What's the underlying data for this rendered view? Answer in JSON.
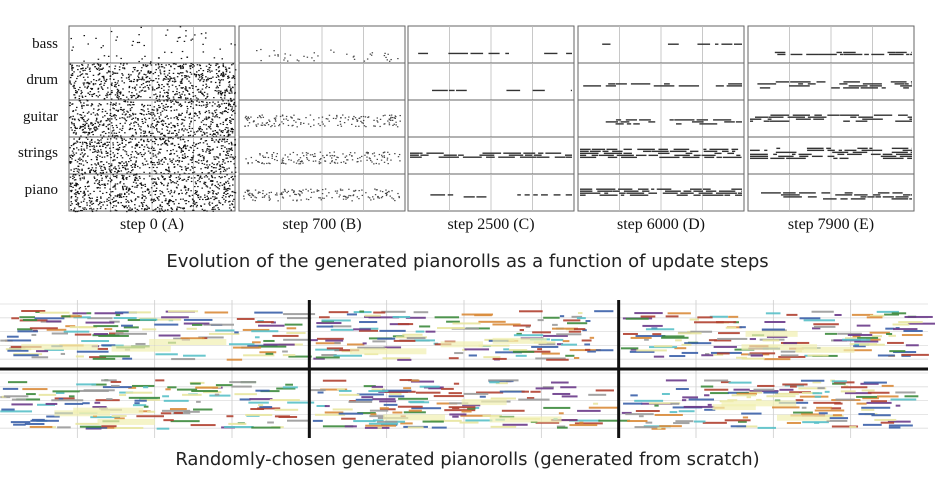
{
  "evolution": {
    "tracks": [
      "bass",
      "drum",
      "guitar",
      "strings",
      "piano"
    ],
    "steps": [
      {
        "label": "step 0 (A)",
        "density": "noise"
      },
      {
        "label": "step 700 (B)",
        "density": "sparse-dots"
      },
      {
        "label": "step 2500 (C)",
        "density": "few-lines"
      },
      {
        "label": "step 6000 (D)",
        "density": "lines"
      },
      {
        "label": "step 7900 (E)",
        "density": "dense-lines"
      }
    ],
    "caption": "Evolution of the generated pianorolls as a function of update steps"
  },
  "random_samples": {
    "caption": "Randomly-chosen generated pianorolls (generated from scratch)",
    "rows": 2,
    "cols": 3,
    "colors": [
      "#3a5fa8",
      "#e8e6a0",
      "#d98b3a",
      "#3c8a3c",
      "#6a3a8a",
      "#58c0c8",
      "#b04030",
      "#9a9a9a"
    ]
  }
}
